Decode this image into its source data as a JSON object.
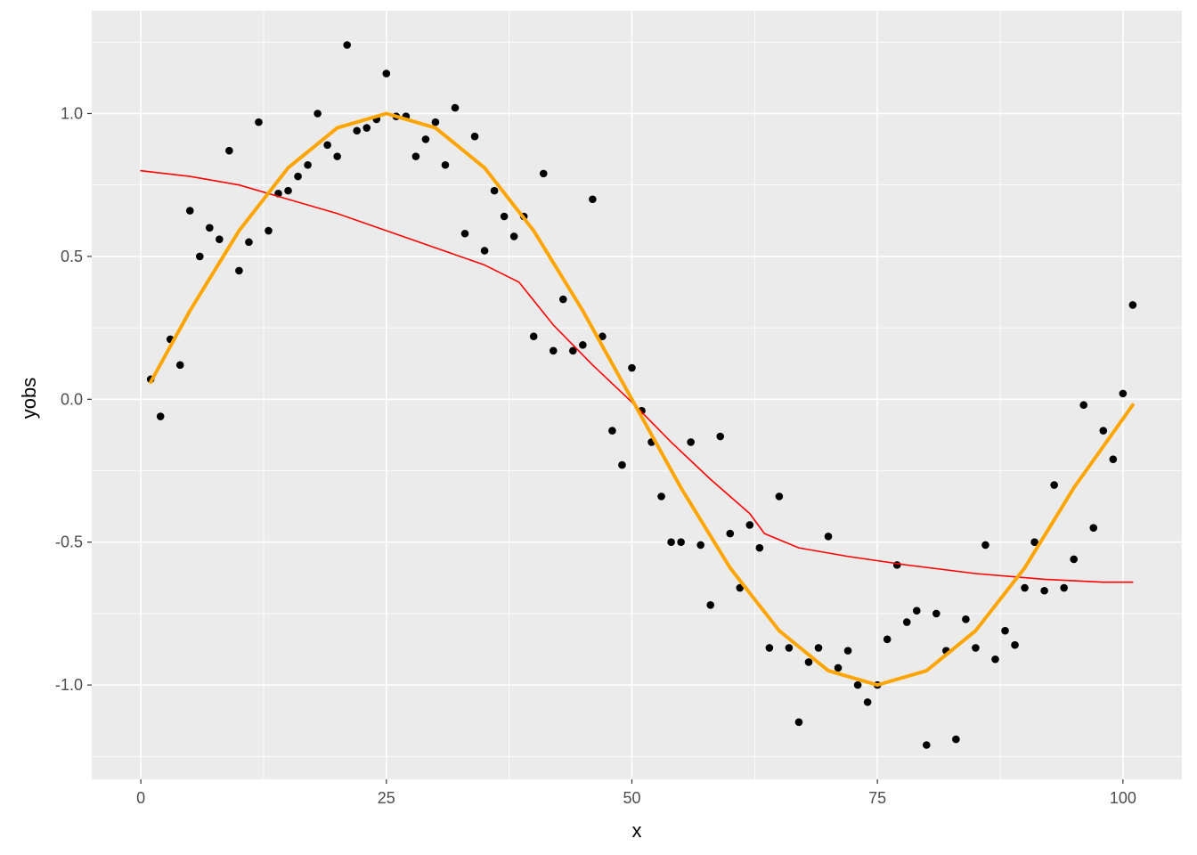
{
  "chart_data": {
    "type": "scatter",
    "xlabel": "x",
    "ylabel": "yobs",
    "xlim": [
      -5,
      106
    ],
    "ylim": [
      -1.33,
      1.36
    ],
    "x_ticks": [
      0,
      25,
      50,
      75,
      100
    ],
    "x_tick_labels": [
      "0",
      "25",
      "50",
      "75",
      "100"
    ],
    "y_ticks": [
      -1.0,
      -0.5,
      0.0,
      0.5,
      1.0
    ],
    "y_tick_labels": [
      "-1.0",
      "-0.5",
      "0.0",
      "0.5",
      "1.0"
    ],
    "grid": true,
    "legend": "none",
    "panel_background": "#ebebeb",
    "grid_color": "#ffffff",
    "series": [
      {
        "kind": "points",
        "color": "#000000",
        "x": [
          1,
          2,
          3,
          4,
          5,
          6,
          7,
          8,
          9,
          10,
          11,
          12,
          13,
          14,
          15,
          16,
          17,
          18,
          19,
          20,
          21,
          22,
          23,
          24,
          25,
          26,
          27,
          28,
          29,
          30,
          31,
          32,
          33,
          34,
          35,
          36,
          37,
          38,
          39,
          40,
          41,
          42,
          43,
          44,
          45,
          46,
          47,
          48,
          49,
          50,
          51,
          52,
          53,
          54,
          55,
          56,
          57,
          58,
          59,
          60,
          61,
          62,
          63,
          64,
          65,
          66,
          67,
          68,
          69,
          70,
          71,
          72,
          73,
          74,
          75,
          76,
          77,
          78,
          79,
          80,
          81,
          82,
          83,
          84,
          85,
          86,
          87,
          88,
          89,
          90,
          91,
          92,
          93,
          94,
          95,
          96,
          97,
          98,
          99,
          100,
          101
        ],
        "y": [
          0.07,
          -0.06,
          0.21,
          0.12,
          0.66,
          0.5,
          0.6,
          0.56,
          0.87,
          0.45,
          0.55,
          0.97,
          0.59,
          0.72,
          0.73,
          0.78,
          0.82,
          1.0,
          0.89,
          0.85,
          1.24,
          0.94,
          0.95,
          0.98,
          1.14,
          0.99,
          0.99,
          0.85,
          0.91,
          0.97,
          0.82,
          1.02,
          0.58,
          0.92,
          0.52,
          0.73,
          0.64,
          0.57,
          0.64,
          0.22,
          0.79,
          0.17,
          0.35,
          0.17,
          0.19,
          0.7,
          0.22,
          -0.11,
          -0.23,
          0.11,
          -0.04,
          -0.15,
          -0.34,
          -0.5,
          -0.5,
          -0.15,
          -0.51,
          -0.72,
          -0.13,
          -0.47,
          -0.66,
          -0.44,
          -0.52,
          -0.87,
          -0.34,
          -0.87,
          -1.13,
          -0.92,
          -0.87,
          -0.48,
          -0.94,
          -0.88,
          -1.0,
          -1.06,
          -1.0,
          -0.84,
          -0.58,
          -0.78,
          -0.74,
          -1.21,
          -0.75,
          -0.88,
          -1.19,
          -0.77,
          -0.87,
          -0.51,
          -0.91,
          -0.81,
          -0.86,
          -0.66,
          -0.5,
          -0.67,
          -0.3,
          -0.66,
          -0.56,
          -0.02,
          -0.45,
          -0.11,
          -0.21,
          0.02,
          0.33
        ]
      },
      {
        "kind": "line",
        "color": "#ff0000",
        "x": [
          0,
          5,
          10,
          15,
          20,
          25,
          30,
          35,
          38.5,
          42,
          46,
          50,
          54,
          58,
          62,
          63.5,
          67,
          72,
          78,
          85,
          92,
          98,
          101
        ],
        "y": [
          0.8,
          0.78,
          0.75,
          0.7,
          0.65,
          0.59,
          0.53,
          0.47,
          0.41,
          0.26,
          0.12,
          -0.01,
          -0.15,
          -0.28,
          -0.4,
          -0.47,
          -0.52,
          -0.55,
          -0.58,
          -0.61,
          -0.63,
          -0.64,
          -0.64
        ]
      },
      {
        "kind": "line",
        "color": "#ffa500",
        "x": [
          1,
          5,
          10,
          15,
          20,
          25,
          30,
          35,
          40,
          45,
          50,
          55,
          60,
          65,
          70,
          75,
          80,
          85,
          90,
          95,
          101
        ],
        "y": [
          0.06,
          0.31,
          0.59,
          0.81,
          0.95,
          1.0,
          0.95,
          0.81,
          0.59,
          0.31,
          0.0,
          -0.31,
          -0.59,
          -0.81,
          -0.95,
          -1.0,
          -0.95,
          -0.81,
          -0.59,
          -0.31,
          -0.02
        ]
      }
    ]
  }
}
